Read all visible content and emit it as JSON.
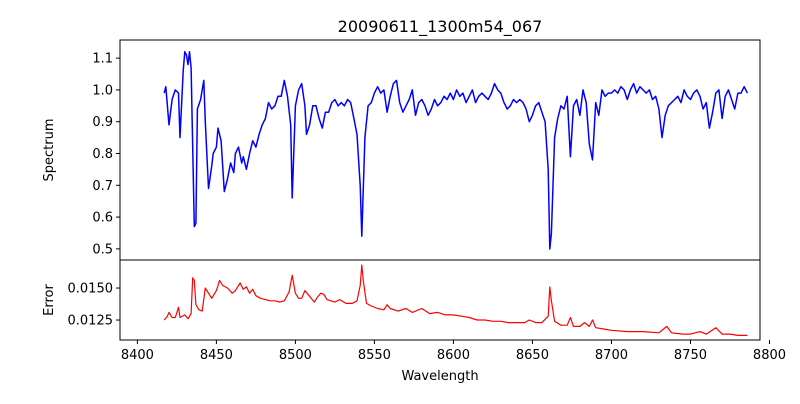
{
  "chart_data": [
    {
      "type": "line",
      "title": "20090611_1300m54_067",
      "xlabel": "",
      "ylabel": "Spectrum",
      "xlim": [
        8389,
        8794
      ],
      "ylim": [
        0.465,
        1.157
      ],
      "yticks": [
        0.5,
        0.6,
        0.7,
        0.8,
        0.9,
        1.0,
        1.1
      ],
      "ytick_labels": [
        "0.5",
        "0.6",
        "0.7",
        "0.8",
        "0.9",
        "1.0",
        "1.1"
      ],
      "color": "#0000ff",
      "grid": false,
      "points": [
        [
          8417,
          0.99
        ],
        [
          8418,
          1.01
        ],
        [
          8420,
          0.89
        ],
        [
          8422,
          0.97
        ],
        [
          8424,
          1.0
        ],
        [
          8426,
          0.99
        ],
        [
          8427,
          0.85
        ],
        [
          8429,
          1.06
        ],
        [
          8430,
          1.12
        ],
        [
          8431,
          1.11
        ],
        [
          8432,
          1.08
        ],
        [
          8433,
          1.12
        ],
        [
          8434,
          1.07
        ],
        [
          8436,
          0.57
        ],
        [
          8437,
          0.58
        ],
        [
          8438,
          0.94
        ],
        [
          8440,
          0.97
        ],
        [
          8442,
          1.03
        ],
        [
          8443,
          0.9
        ],
        [
          8445,
          0.69
        ],
        [
          8447,
          0.76
        ],
        [
          8448,
          0.8
        ],
        [
          8450,
          0.82
        ],
        [
          8451,
          0.88
        ],
        [
          8453,
          0.84
        ],
        [
          8455,
          0.68
        ],
        [
          8457,
          0.72
        ],
        [
          8459,
          0.77
        ],
        [
          8461,
          0.74
        ],
        [
          8462,
          0.8
        ],
        [
          8464,
          0.82
        ],
        [
          8466,
          0.77
        ],
        [
          8467,
          0.79
        ],
        [
          8469,
          0.75
        ],
        [
          8471,
          0.8
        ],
        [
          8473,
          0.84
        ],
        [
          8475,
          0.82
        ],
        [
          8477,
          0.86
        ],
        [
          8479,
          0.89
        ],
        [
          8481,
          0.91
        ],
        [
          8483,
          0.96
        ],
        [
          8485,
          0.94
        ],
        [
          8487,
          0.95
        ],
        [
          8489,
          0.98
        ],
        [
          8491,
          0.98
        ],
        [
          8493,
          1.03
        ],
        [
          8495,
          0.98
        ],
        [
          8497,
          0.89
        ],
        [
          8498,
          0.66
        ],
        [
          8500,
          0.95
        ],
        [
          8502,
          1.0
        ],
        [
          8504,
          1.02
        ],
        [
          8506,
          0.95
        ],
        [
          8507,
          0.86
        ],
        [
          8509,
          0.89
        ],
        [
          8511,
          0.95
        ],
        [
          8513,
          0.95
        ],
        [
          8515,
          0.91
        ],
        [
          8517,
          0.88
        ],
        [
          8519,
          0.93
        ],
        [
          8521,
          0.93
        ],
        [
          8523,
          0.96
        ],
        [
          8525,
          0.97
        ],
        [
          8527,
          0.95
        ],
        [
          8529,
          0.96
        ],
        [
          8531,
          0.95
        ],
        [
          8533,
          0.97
        ],
        [
          8535,
          0.96
        ],
        [
          8537,
          0.91
        ],
        [
          8539,
          0.86
        ],
        [
          8541,
          0.7
        ],
        [
          8542,
          0.54
        ],
        [
          8544,
          0.85
        ],
        [
          8546,
          0.95
        ],
        [
          8548,
          0.96
        ],
        [
          8550,
          0.99
        ],
        [
          8552,
          1.01
        ],
        [
          8554,
          0.99
        ],
        [
          8556,
          1.0
        ],
        [
          8558,
          0.93
        ],
        [
          8560,
          0.98
        ],
        [
          8562,
          1.02
        ],
        [
          8564,
          1.03
        ],
        [
          8566,
          0.96
        ],
        [
          8568,
          0.93
        ],
        [
          8570,
          0.95
        ],
        [
          8572,
          0.97
        ],
        [
          8574,
          1.0
        ],
        [
          8576,
          0.92
        ],
        [
          8578,
          0.96
        ],
        [
          8580,
          0.97
        ],
        [
          8582,
          0.95
        ],
        [
          8584,
          0.92
        ],
        [
          8586,
          0.94
        ],
        [
          8588,
          0.97
        ],
        [
          8590,
          0.95
        ],
        [
          8592,
          0.96
        ],
        [
          8594,
          0.98
        ],
        [
          8596,
          0.97
        ],
        [
          8598,
          0.99
        ],
        [
          8600,
          0.97
        ],
        [
          8602,
          1.0
        ],
        [
          8604,
          0.98
        ],
        [
          8606,
          0.99
        ],
        [
          8608,
          0.96
        ],
        [
          8610,
          0.98
        ],
        [
          8612,
          1.0
        ],
        [
          8614,
          0.96
        ],
        [
          8616,
          0.98
        ],
        [
          8618,
          0.99
        ],
        [
          8620,
          0.98
        ],
        [
          8622,
          0.97
        ],
        [
          8624,
          0.99
        ],
        [
          8626,
          1.02
        ],
        [
          8628,
          1.0
        ],
        [
          8630,
          0.99
        ],
        [
          8632,
          0.96
        ],
        [
          8634,
          0.94
        ],
        [
          8636,
          0.95
        ],
        [
          8638,
          0.97
        ],
        [
          8640,
          0.96
        ],
        [
          8642,
          0.97
        ],
        [
          8644,
          0.96
        ],
        [
          8646,
          0.94
        ],
        [
          8648,
          0.9
        ],
        [
          8650,
          0.92
        ],
        [
          8652,
          0.95
        ],
        [
          8654,
          0.96
        ],
        [
          8656,
          0.93
        ],
        [
          8658,
          0.9
        ],
        [
          8660,
          0.75
        ],
        [
          8661,
          0.5
        ],
        [
          8662,
          0.55
        ],
        [
          8664,
          0.85
        ],
        [
          8666,
          0.91
        ],
        [
          8668,
          0.95
        ],
        [
          8670,
          0.94
        ],
        [
          8672,
          0.98
        ],
        [
          8674,
          0.79
        ],
        [
          8676,
          0.95
        ],
        [
          8678,
          0.97
        ],
        [
          8680,
          0.92
        ],
        [
          8682,
          1.0
        ],
        [
          8684,
          0.96
        ],
        [
          8686,
          0.83
        ],
        [
          8688,
          0.78
        ],
        [
          8690,
          0.96
        ],
        [
          8692,
          0.92
        ],
        [
          8694,
          1.0
        ],
        [
          8696,
          0.98
        ],
        [
          8698,
          0.99
        ],
        [
          8700,
          0.99
        ],
        [
          8702,
          1.0
        ],
        [
          8704,
          0.99
        ],
        [
          8706,
          1.01
        ],
        [
          8708,
          1.0
        ],
        [
          8710,
          0.97
        ],
        [
          8712,
          1.0
        ],
        [
          8714,
          1.02
        ],
        [
          8716,
          0.99
        ],
        [
          8718,
          1.01
        ],
        [
          8720,
          1.0
        ],
        [
          8722,
          0.99
        ],
        [
          8724,
          1.0
        ],
        [
          8726,
          0.97
        ],
        [
          8728,
          0.98
        ],
        [
          8730,
          0.94
        ],
        [
          8732,
          0.85
        ],
        [
          8734,
          0.92
        ],
        [
          8736,
          0.95
        ],
        [
          8738,
          0.96
        ],
        [
          8740,
          0.97
        ],
        [
          8742,
          0.98
        ],
        [
          8744,
          0.96
        ],
        [
          8746,
          1.0
        ],
        [
          8748,
          0.98
        ],
        [
          8750,
          0.97
        ],
        [
          8752,
          0.99
        ],
        [
          8754,
          1.0
        ],
        [
          8756,
          0.98
        ],
        [
          8758,
          0.94
        ],
        [
          8760,
          0.96
        ],
        [
          8762,
          0.88
        ],
        [
          8764,
          0.93
        ],
        [
          8766,
          0.99
        ],
        [
          8768,
          1.0
        ],
        [
          8770,
          0.91
        ],
        [
          8772,
          0.98
        ],
        [
          8774,
          1.0
        ],
        [
          8776,
          0.97
        ],
        [
          8778,
          0.94
        ],
        [
          8780,
          0.99
        ],
        [
          8782,
          0.99
        ],
        [
          8784,
          1.01
        ],
        [
          8786,
          0.99
        ]
      ]
    },
    {
      "type": "line",
      "title": "",
      "xlabel": "Wavelength",
      "ylabel": "Error",
      "xlim": [
        8389,
        8794
      ],
      "ylim": [
        0.01094,
        0.01719
      ],
      "xticks": [
        8400,
        8450,
        8500,
        8550,
        8600,
        8650,
        8700,
        8750,
        8800
      ],
      "xtick_labels": [
        "8400",
        "8450",
        "8500",
        "8550",
        "8600",
        "8650",
        "8700",
        "8750",
        "8800"
      ],
      "yticks": [
        0.0125,
        0.015
      ],
      "ytick_labels": [
        "0.0125",
        "0.0150"
      ],
      "color": "#ff0000",
      "grid": false,
      "points": [
        [
          8417,
          0.0125
        ],
        [
          8419,
          0.0128
        ],
        [
          8420,
          0.0131
        ],
        [
          8422,
          0.0127
        ],
        [
          8424,
          0.0127
        ],
        [
          8426,
          0.0135
        ],
        [
          8427,
          0.0127
        ],
        [
          8430,
          0.0129
        ],
        [
          8432,
          0.0126
        ],
        [
          8434,
          0.013
        ],
        [
          8435,
          0.0158
        ],
        [
          8436,
          0.0156
        ],
        [
          8437,
          0.0137
        ],
        [
          8439,
          0.0133
        ],
        [
          8441,
          0.0132
        ],
        [
          8443,
          0.015
        ],
        [
          8445,
          0.0146
        ],
        [
          8447,
          0.0142
        ],
        [
          8450,
          0.0148
        ],
        [
          8452,
          0.0156
        ],
        [
          8454,
          0.0152
        ],
        [
          8457,
          0.015
        ],
        [
          8460,
          0.0146
        ],
        [
          8462,
          0.0148
        ],
        [
          8465,
          0.0154
        ],
        [
          8467,
          0.0149
        ],
        [
          8469,
          0.0151
        ],
        [
          8471,
          0.0146
        ],
        [
          8473,
          0.0149
        ],
        [
          8475,
          0.0144
        ],
        [
          8478,
          0.0142
        ],
        [
          8481,
          0.0141
        ],
        [
          8484,
          0.014
        ],
        [
          8487,
          0.014
        ],
        [
          8490,
          0.0139
        ],
        [
          8493,
          0.014
        ],
        [
          8496,
          0.0147
        ],
        [
          8498,
          0.016
        ],
        [
          8500,
          0.0146
        ],
        [
          8502,
          0.0142
        ],
        [
          8504,
          0.0142
        ],
        [
          8506,
          0.0148
        ],
        [
          8508,
          0.0145
        ],
        [
          8510,
          0.0142
        ],
        [
          8512,
          0.0139
        ],
        [
          8514,
          0.0143
        ],
        [
          8516,
          0.0146
        ],
        [
          8518,
          0.0145
        ],
        [
          8520,
          0.0141
        ],
        [
          8525,
          0.0139
        ],
        [
          8528,
          0.0141
        ],
        [
          8532,
          0.0138
        ],
        [
          8536,
          0.0138
        ],
        [
          8539,
          0.014
        ],
        [
          8541,
          0.0152
        ],
        [
          8542,
          0.0168
        ],
        [
          8543,
          0.0155
        ],
        [
          8545,
          0.0138
        ],
        [
          8548,
          0.0136
        ],
        [
          8552,
          0.0134
        ],
        [
          8556,
          0.0133
        ],
        [
          8558,
          0.0137
        ],
        [
          8560,
          0.0134
        ],
        [
          8565,
          0.0132
        ],
        [
          8570,
          0.0134
        ],
        [
          8574,
          0.0131
        ],
        [
          8580,
          0.0134
        ],
        [
          8585,
          0.013
        ],
        [
          8590,
          0.0131
        ],
        [
          8595,
          0.0129
        ],
        [
          8600,
          0.0129
        ],
        [
          8605,
          0.0128
        ],
        [
          8610,
          0.0127
        ],
        [
          8615,
          0.0125
        ],
        [
          8620,
          0.0125
        ],
        [
          8625,
          0.0124
        ],
        [
          8630,
          0.0124
        ],
        [
          8635,
          0.0123
        ],
        [
          8640,
          0.0123
        ],
        [
          8645,
          0.0123
        ],
        [
          8648,
          0.0125
        ],
        [
          8652,
          0.0123
        ],
        [
          8656,
          0.0123
        ],
        [
          8660,
          0.0128
        ],
        [
          8661,
          0.0151
        ],
        [
          8662,
          0.014
        ],
        [
          8664,
          0.0124
        ],
        [
          8668,
          0.0121
        ],
        [
          8672,
          0.0121
        ],
        [
          8674,
          0.0127
        ],
        [
          8676,
          0.012
        ],
        [
          8680,
          0.012
        ],
        [
          8683,
          0.0123
        ],
        [
          8686,
          0.012
        ],
        [
          8688,
          0.0125
        ],
        [
          8690,
          0.0119
        ],
        [
          8695,
          0.0118
        ],
        [
          8700,
          0.0117
        ],
        [
          8710,
          0.0116
        ],
        [
          8720,
          0.0116
        ],
        [
          8730,
          0.0115
        ],
        [
          8735,
          0.012
        ],
        [
          8738,
          0.0115
        ],
        [
          8745,
          0.0114
        ],
        [
          8750,
          0.0114
        ],
        [
          8756,
          0.0116
        ],
        [
          8760,
          0.0114
        ],
        [
          8766,
          0.0119
        ],
        [
          8770,
          0.0114
        ],
        [
          8775,
          0.0114
        ],
        [
          8780,
          0.0113
        ],
        [
          8786,
          0.0113
        ]
      ]
    }
  ]
}
